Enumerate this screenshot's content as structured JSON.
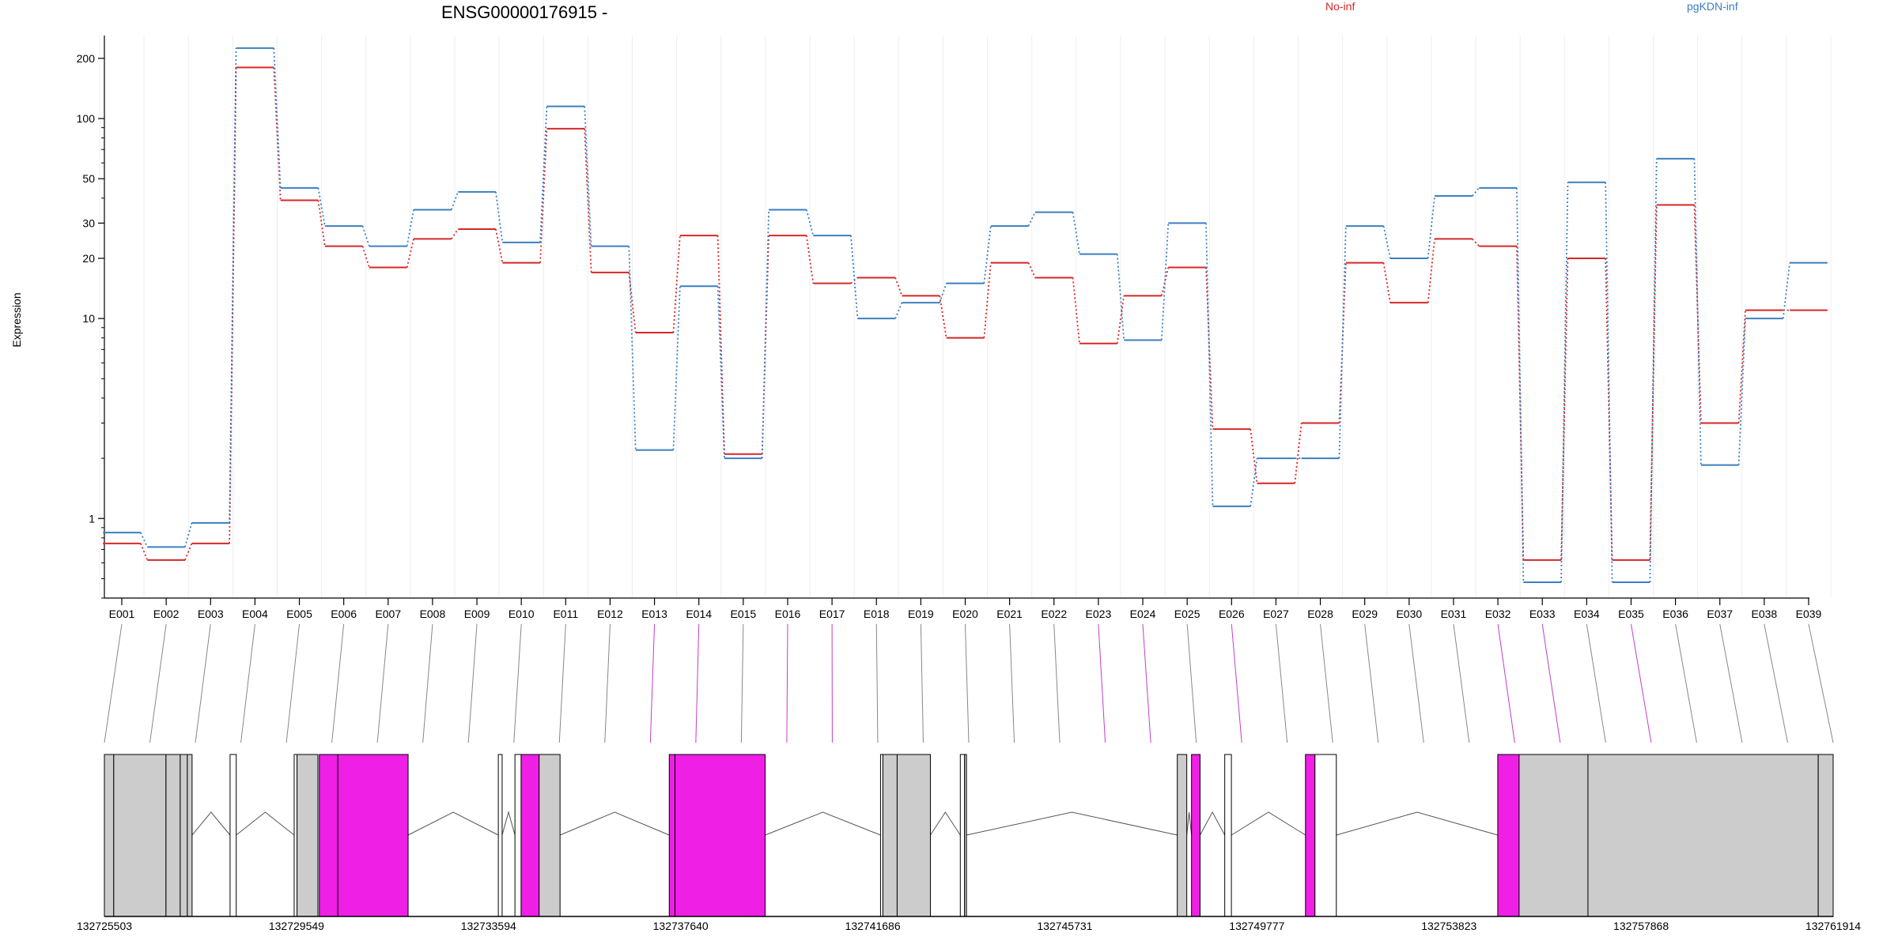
{
  "chart_data": {
    "type": "line",
    "title": "ENSG00000176915 -",
    "ylabel": "Expression",
    "yscale": "log",
    "ylim": [
      0.4,
      260
    ],
    "yticks": [
      "1",
      "10",
      "20",
      "30",
      "50",
      "100",
      "200"
    ],
    "categories": [
      "E001",
      "E002",
      "E003",
      "E004",
      "E005",
      "E006",
      "E007",
      "E008",
      "E009",
      "E010",
      "E011",
      "E012",
      "E013",
      "E014",
      "E015",
      "E016",
      "E017",
      "E018",
      "E019",
      "E020",
      "E021",
      "E022",
      "E023",
      "E024",
      "E025",
      "E026",
      "E027",
      "E028",
      "E029",
      "E030",
      "E031",
      "E032",
      "E033",
      "E034",
      "E035",
      "E036",
      "E037",
      "E038",
      "E039"
    ],
    "legend": [
      {
        "label": "No-inf",
        "color": "#d62728"
      },
      {
        "label": "pgKDN-inf",
        "color": "#3a7fc1"
      }
    ],
    "series": [
      {
        "name": "No-inf",
        "color": "#d62728",
        "values": [
          0.75,
          0.62,
          0.75,
          180,
          39,
          23,
          18,
          25,
          28,
          19,
          89,
          17,
          8.5,
          26,
          2.1,
          26,
          15,
          16,
          13,
          8,
          19,
          16,
          7.5,
          13,
          18,
          2.8,
          1.5,
          3.0,
          19,
          12,
          25,
          23,
          0.62,
          20,
          0.62,
          37,
          3.0,
          11,
          11
        ]
      },
      {
        "name": "pgKDN-inf",
        "color": "#3a7fc1",
        "values": [
          0.85,
          0.72,
          0.95,
          225,
          45,
          29,
          23,
          35,
          43,
          24,
          115,
          23,
          2.2,
          14.5,
          2.0,
          35,
          26,
          10,
          12,
          15,
          29,
          34,
          21,
          7.8,
          30,
          1.15,
          2.0,
          2.0,
          29,
          20,
          41,
          45,
          0.48,
          48,
          0.48,
          63,
          1.85,
          10,
          19
        ]
      }
    ],
    "gene_model": {
      "coordinate_labels": [
        "132725503",
        "132729549",
        "132733594",
        "132737640",
        "132741686",
        "132745731",
        "132749777",
        "132753823",
        "132757868",
        "132761914"
      ],
      "exons": [
        {
          "start": 132725503,
          "end": 132725700,
          "color": "#cccccc"
        },
        {
          "start": 132725700,
          "end": 132726800,
          "color": "#cccccc"
        },
        {
          "start": 132726800,
          "end": 132727100,
          "color": "#cccccc"
        },
        {
          "start": 132727100,
          "end": 132727250,
          "color": "#cccccc"
        },
        {
          "start": 132727250,
          "end": 132727350,
          "color": "#cccccc"
        },
        {
          "start": 132728150,
          "end": 132728280,
          "color": "#ffffff"
        },
        {
          "start": 132729500,
          "end": 132729560,
          "color": "#ffffff"
        },
        {
          "start": 132729560,
          "end": 132730000,
          "color": "#cccccc"
        },
        {
          "start": 132730030,
          "end": 132730420,
          "color": "#f01fe6"
        },
        {
          "start": 132730420,
          "end": 132731900,
          "color": "#f01fe6"
        },
        {
          "start": 132733800,
          "end": 132733880,
          "color": "#ffffff"
        },
        {
          "start": 132734150,
          "end": 132734280,
          "color": "#ffffff"
        },
        {
          "start": 132734280,
          "end": 132734660,
          "color": "#f01fe6"
        },
        {
          "start": 132734660,
          "end": 132735100,
          "color": "#cccccc"
        },
        {
          "start": 132737400,
          "end": 132737520,
          "color": "#f01fe6"
        },
        {
          "start": 132737520,
          "end": 132739420,
          "color": "#f01fe6"
        },
        {
          "start": 132741850,
          "end": 132741900,
          "color": "#ffffff"
        },
        {
          "start": 132741900,
          "end": 132742200,
          "color": "#cccccc"
        },
        {
          "start": 132742200,
          "end": 132742900,
          "color": "#cccccc"
        },
        {
          "start": 132743530,
          "end": 132743620,
          "color": "#ffffff"
        },
        {
          "start": 132743620,
          "end": 132743660,
          "color": "#cccccc"
        },
        {
          "start": 132748100,
          "end": 132748300,
          "color": "#cccccc"
        },
        {
          "start": 132748400,
          "end": 132748580,
          "color": "#f01fe6"
        },
        {
          "start": 132749100,
          "end": 132749240,
          "color": "#ffffff"
        },
        {
          "start": 132750800,
          "end": 132751000,
          "color": "#f01fe6"
        },
        {
          "start": 132751000,
          "end": 132751450,
          "color": "#ffffff"
        },
        {
          "start": 132754850,
          "end": 132755300,
          "color": "#f01fe6"
        },
        {
          "start": 132755300,
          "end": 132756750,
          "color": "#cccccc"
        },
        {
          "start": 132756750,
          "end": 132761600,
          "color": "#cccccc"
        },
        {
          "start": 132761600,
          "end": 132761914,
          "color": "#cccccc"
        }
      ],
      "highlighted_bins": [
        "E013",
        "E014",
        "E016",
        "E017",
        "E023",
        "E024",
        "E026",
        "E032",
        "E033",
        "E035"
      ]
    }
  }
}
